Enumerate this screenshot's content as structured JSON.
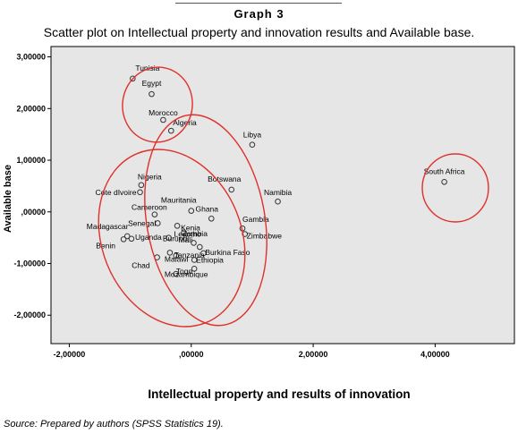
{
  "header": {
    "title": "Graph 3",
    "subtitle": "Scatter plot on Intellectual property and innovation results and Available base."
  },
  "footer": {
    "source": "Source: Prepared by authors (SPSS Statistics 19)."
  },
  "chart_data": {
    "type": "scatter",
    "xlabel": "Intellectual property and results of innovation",
    "ylabel": "Available base",
    "xlim": [
      -2.3,
      5.3
    ],
    "ylim": [
      -2.55,
      3.2
    ],
    "grid": false,
    "x_ticks": [
      {
        "value": -2,
        "label": "-2,00000"
      },
      {
        "value": 0,
        "label": ",00000"
      },
      {
        "value": 2,
        "label": "2,00000"
      },
      {
        "value": 4,
        "label": "4,00000"
      }
    ],
    "y_ticks": [
      {
        "value": 3,
        "label": "3,00000"
      },
      {
        "value": 2,
        "label": "2,00000"
      },
      {
        "value": 1,
        "label": "1,00000"
      },
      {
        "value": 0,
        "label": ",00000"
      },
      {
        "value": -1,
        "label": "-1,00000"
      },
      {
        "value": -2,
        "label": "-2,00000"
      }
    ],
    "points": [
      {
        "name": "Tunisia",
        "x": -0.96,
        "y": 2.58
      },
      {
        "name": "Egypt",
        "x": -0.65,
        "y": 2.28
      },
      {
        "name": "Morocco",
        "x": -0.46,
        "y": 1.78
      },
      {
        "name": "Algeria",
        "x": -0.33,
        "y": 1.57
      },
      {
        "name": "Libya",
        "x": 1.0,
        "y": 1.3
      },
      {
        "name": "South Africa",
        "x": 4.15,
        "y": 0.58
      },
      {
        "name": "Nigeria",
        "x": -0.82,
        "y": 0.52
      },
      {
        "name": "Cote dIvoire",
        "x": -0.84,
        "y": 0.38
      },
      {
        "name": "Botswana",
        "x": 0.66,
        "y": 0.43
      },
      {
        "name": "Namibia",
        "x": 1.42,
        "y": 0.2
      },
      {
        "name": "Mauritania",
        "x": 0.0,
        "y": 0.02
      },
      {
        "name": "Cameroon",
        "x": -0.6,
        "y": -0.05
      },
      {
        "name": "Ghana",
        "x": 0.33,
        "y": -0.13
      },
      {
        "name": "Senegal",
        "x": -0.55,
        "y": -0.22
      },
      {
        "name": "Kenia",
        "x": -0.23,
        "y": -0.27
      },
      {
        "name": "Gambia",
        "x": 0.84,
        "y": -0.32
      },
      {
        "name": "Madagascar",
        "x": -1.05,
        "y": -0.47
      },
      {
        "name": "Uganda",
        "x": -0.98,
        "y": -0.52
      },
      {
        "name": "Zambia",
        "x": -0.12,
        "y": -0.4
      },
      {
        "name": "Zimbabwe",
        "x": 0.88,
        "y": -0.43
      },
      {
        "name": "Benin",
        "x": -1.11,
        "y": -0.53
      },
      {
        "name": "Lesotho",
        "x": -0.37,
        "y": -0.5
      },
      {
        "name": "Burundi",
        "x": 0.04,
        "y": -0.6
      },
      {
        "name": "Mali",
        "x": 0.14,
        "y": -0.68
      },
      {
        "name": "Burkina Faso",
        "x": 0.2,
        "y": -0.8
      },
      {
        "name": "Malawi",
        "x": -0.35,
        "y": -0.79
      },
      {
        "name": "Tanzania",
        "x": -0.25,
        "y": -0.85
      },
      {
        "name": "Chad",
        "x": -0.56,
        "y": -0.88
      },
      {
        "name": "Ethiopia",
        "x": 0.05,
        "y": -0.93
      },
      {
        "name": "Mozambique",
        "x": 0.05,
        "y": -1.1
      },
      {
        "name": "Togo",
        "x": -0.25,
        "y": -1.2
      }
    ],
    "highlight_color": "#e0302a",
    "point_color": "#333333",
    "plot_background": "#e6e6e6"
  }
}
